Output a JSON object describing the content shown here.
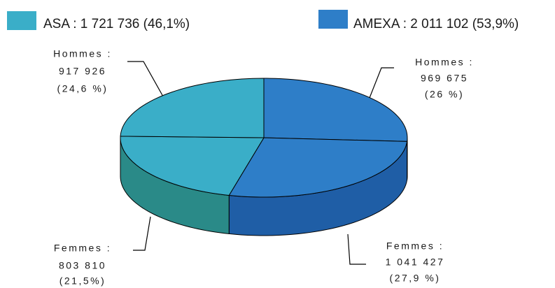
{
  "chart_data": {
    "type": "pie",
    "legend": [
      {
        "label": "ASA : 1 721 736 (46,1%)",
        "color": "#3aaec8",
        "side_color": "#2a8a88"
      },
      {
        "label": "AMEXA : 2 011 102 (53,9%)",
        "color": "#2e7ec8",
        "side_color": "#1f5ea6"
      }
    ],
    "categories": [
      "Hommes :",
      "Femmes :",
      "Femmes :",
      "Hommes :"
    ],
    "groups": [
      1,
      1,
      0,
      0
    ],
    "counts": [
      {
        "value": 969675,
        "label": "969 675"
      },
      {
        "value": 1041427,
        "label": "1 041 427"
      },
      {
        "value": 803810,
        "label": "803 810"
      },
      {
        "value": 917926,
        "label": "917 926"
      }
    ],
    "values": [
      26,
      27.9,
      21.5,
      24.6
    ],
    "value_labels": [
      "(26 %)",
      "(27,9 %)",
      "(21,5%)",
      "(24,6 %)"
    ]
  }
}
